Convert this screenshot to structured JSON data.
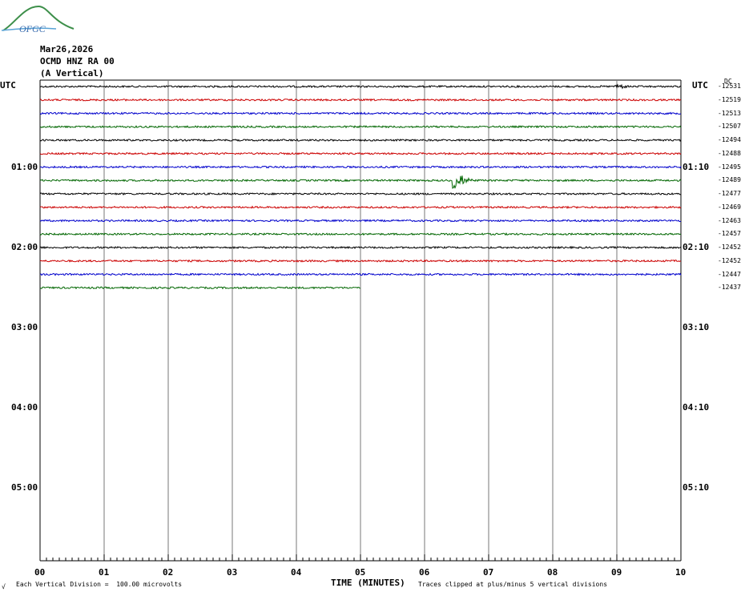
{
  "logo": {
    "text": "OFGC"
  },
  "header": {
    "date": "Mar26,2026",
    "station": "OCMD HNZ RA 00",
    "component": "(A Vertical)"
  },
  "axis": {
    "left_tz": "UTC",
    "right_tz": "UTC",
    "dc_label": "DC",
    "left_hour_labels": [
      "01:00",
      "02:00",
      "03:00",
      "04:00",
      "05:00"
    ],
    "right_hour_labels": [
      "01:10",
      "02:10",
      "03:10",
      "04:10",
      "05:10"
    ],
    "x_label": "TIME (MINUTES)"
  },
  "footer": {
    "scale": "Each Vertical Division =  100.00 microvolts",
    "clip": "Traces clipped at plus/minus 5 vertical divisions",
    "mark": "√"
  },
  "chart_data": {
    "type": "line",
    "title": "OCMD HNZ RA 00 (A Vertical)",
    "date": "Mar26,2026",
    "xlabel": "TIME (MINUTES)",
    "x_ticks": [
      "00",
      "01",
      "02",
      "03",
      "04",
      "05",
      "06",
      "07",
      "08",
      "09",
      "10"
    ],
    "xlim": [
      0,
      10
    ],
    "row_minutes": 10,
    "grid": true,
    "trace_colors": [
      "#000000",
      "#cc0000",
      "#0000cc",
      "#006600"
    ],
    "series": [
      {
        "row": 0,
        "dc": -12531,
        "end_minute": 10,
        "event": {
          "minute": 9.05,
          "size": 0.8
        }
      },
      {
        "row": 1,
        "dc": -12519,
        "end_minute": 10
      },
      {
        "row": 2,
        "dc": -12513,
        "end_minute": 10
      },
      {
        "row": 3,
        "dc": -12507,
        "end_minute": 10
      },
      {
        "row": 4,
        "dc": -12494,
        "end_minute": 10
      },
      {
        "row": 5,
        "dc": -12488,
        "end_minute": 10
      },
      {
        "row": 6,
        "dc": -12495,
        "end_minute": 10
      },
      {
        "row": 7,
        "dc": -12489,
        "end_minute": 10,
        "event": {
          "minute": 6.5,
          "size": 2.8
        }
      },
      {
        "row": 8,
        "dc": -12477,
        "end_minute": 10
      },
      {
        "row": 9,
        "dc": -12469,
        "end_minute": 10
      },
      {
        "row": 10,
        "dc": -12463,
        "end_minute": 10
      },
      {
        "row": 11,
        "dc": -12457,
        "end_minute": 10
      },
      {
        "row": 12,
        "dc": -12452,
        "end_minute": 10
      },
      {
        "row": 13,
        "dc": -12452,
        "end_minute": 10
      },
      {
        "row": 14,
        "dc": -12447,
        "end_minute": 10
      },
      {
        "row": 15,
        "dc": -12437,
        "end_minute": 5
      }
    ]
  }
}
